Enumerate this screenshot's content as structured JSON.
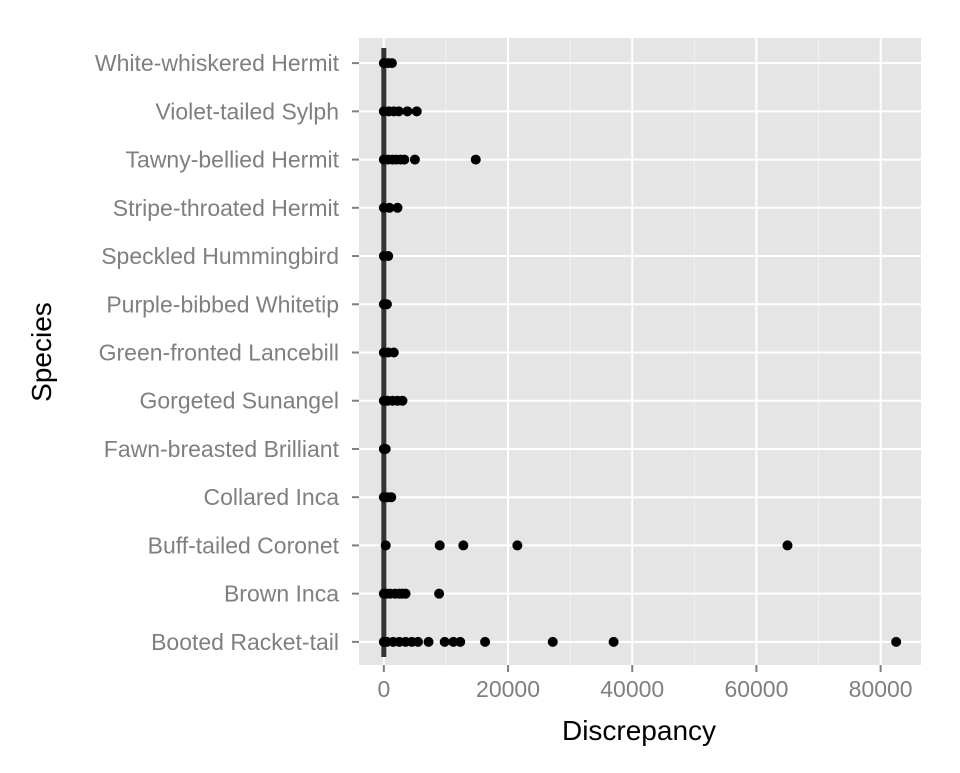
{
  "chart_data": {
    "type": "scatter",
    "title": "",
    "xlabel": "Discrepancy",
    "ylabel": "Species",
    "xlim": [
      -4000,
      86500
    ],
    "x_ticks": [
      0,
      20000,
      40000,
      60000,
      80000
    ],
    "x_tick_labels": [
      "0",
      "20000",
      "40000",
      "60000",
      "80000"
    ],
    "grid": true,
    "reference_line_x": 0,
    "categories": [
      "Booted Racket-tail",
      "Brown Inca",
      "Buff-tailed Coronet",
      "Collared Inca",
      "Fawn-breasted Brilliant",
      "Gorgeted Sunangel",
      "Green-fronted Lancebill",
      "Purple-bibbed Whitetip",
      "Speckled Hummingbird",
      "Stripe-throated Hermit",
      "Tawny-bellied Hermit",
      "Violet-tailed Sylph",
      "White-whiskered Hermit"
    ],
    "points": [
      {
        "species": "Booted Racket-tail",
        "x": [
          0,
          500,
          1500,
          2500,
          3500,
          4500,
          5500,
          7200,
          9800,
          11200,
          12300,
          16300,
          27200,
          37000,
          82500
        ]
      },
      {
        "species": "Brown Inca",
        "x": [
          0,
          400,
          1000,
          1800,
          2500,
          3000,
          3500,
          8900
        ]
      },
      {
        "species": "Buff-tailed Coronet",
        "x": [
          300,
          9000,
          12800,
          21500,
          65000
        ]
      },
      {
        "species": "Collared Inca",
        "x": [
          0,
          600,
          1200
        ]
      },
      {
        "species": "Fawn-breasted Brilliant",
        "x": [
          0,
          300
        ]
      },
      {
        "species": "Gorgeted Sunangel",
        "x": [
          0,
          600,
          1400,
          2200,
          3000
        ]
      },
      {
        "species": "Green-fronted Lancebill",
        "x": [
          0,
          700,
          1600
        ]
      },
      {
        "species": "Purple-bibbed Whitetip",
        "x": [
          0,
          500
        ]
      },
      {
        "species": "Speckled Hummingbird",
        "x": [
          0,
          700
        ]
      },
      {
        "species": "Stripe-throated Hermit",
        "x": [
          0,
          900,
          2200
        ]
      },
      {
        "species": "Tawny-bellied Hermit",
        "x": [
          0,
          700,
          1400,
          2000,
          2700,
          3300,
          5000,
          14800
        ]
      },
      {
        "species": "Violet-tailed Sylph",
        "x": [
          0,
          800,
          1600,
          2400,
          3800,
          5300
        ]
      },
      {
        "species": "White-whiskered Hermit",
        "x": [
          0,
          700,
          1300
        ]
      }
    ],
    "colors": {
      "panel_background": "#e5e5e5",
      "grid_major": "#ffffff",
      "grid_minor": "#f2f2f2",
      "point": "#000000",
      "reference_line": "#333333",
      "tick_label": "#7f7f7f"
    }
  }
}
